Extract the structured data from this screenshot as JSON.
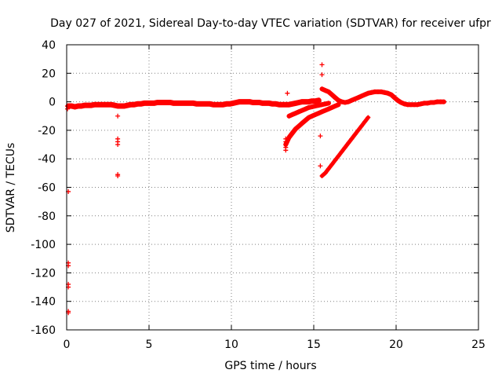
{
  "chart_data": {
    "type": "scatter",
    "title": "Day 027 of 2021, Sidereal Day-to-day VTEC variation (SDTVAR) for receiver ufpr",
    "xlabel": "GPS time / hours",
    "ylabel": "SDTVAR / TECUs",
    "xlim": [
      0,
      25
    ],
    "ylim": [
      -160,
      40
    ],
    "xticks": [
      0,
      5,
      10,
      15,
      20,
      25
    ],
    "yticks": [
      -160,
      -140,
      -120,
      -100,
      -80,
      -60,
      -40,
      -20,
      0,
      20,
      40
    ],
    "grid": true,
    "marker": "+",
    "color": "#ff0000",
    "series": [
      {
        "name": "main",
        "points": [
          [
            0.1,
            -3
          ],
          [
            0.3,
            -3
          ],
          [
            0.5,
            -3.5
          ],
          [
            0.7,
            -3
          ],
          [
            0.9,
            -3
          ],
          [
            1.1,
            -2.5
          ],
          [
            1.3,
            -2.5
          ],
          [
            1.5,
            -2.5
          ],
          [
            1.7,
            -2
          ],
          [
            1.9,
            -2
          ],
          [
            2.1,
            -2
          ],
          [
            2.3,
            -2
          ],
          [
            2.5,
            -2
          ],
          [
            2.7,
            -2
          ],
          [
            2.9,
            -2.5
          ],
          [
            3.1,
            -3
          ],
          [
            3.3,
            -3
          ],
          [
            3.5,
            -3
          ],
          [
            3.7,
            -2.5
          ],
          [
            3.9,
            -2
          ],
          [
            4.1,
            -2
          ],
          [
            4.3,
            -1.5
          ],
          [
            4.5,
            -1.5
          ],
          [
            4.7,
            -1
          ],
          [
            4.9,
            -1
          ],
          [
            5.1,
            -1
          ],
          [
            5.3,
            -1
          ],
          [
            5.5,
            -0.5
          ],
          [
            5.7,
            -0.5
          ],
          [
            5.9,
            -0.5
          ],
          [
            6.1,
            -0.5
          ],
          [
            6.3,
            -0.5
          ],
          [
            6.5,
            -1
          ],
          [
            6.7,
            -1
          ],
          [
            6.9,
            -1
          ],
          [
            7.1,
            -1
          ],
          [
            7.3,
            -1
          ],
          [
            7.5,
            -1
          ],
          [
            7.7,
            -1
          ],
          [
            7.9,
            -1.5
          ],
          [
            8.1,
            -1.5
          ],
          [
            8.3,
            -1.5
          ],
          [
            8.5,
            -1.5
          ],
          [
            8.7,
            -1.5
          ],
          [
            8.9,
            -2
          ],
          [
            9.1,
            -2
          ],
          [
            9.3,
            -2
          ],
          [
            9.5,
            -2
          ],
          [
            9.7,
            -1.5
          ],
          [
            9.9,
            -1.5
          ],
          [
            10.1,
            -1
          ],
          [
            10.3,
            -0.5
          ],
          [
            10.5,
            0
          ],
          [
            10.7,
            0
          ],
          [
            10.9,
            0
          ],
          [
            11.1,
            0
          ],
          [
            11.3,
            -0.5
          ],
          [
            11.5,
            -0.5
          ],
          [
            11.7,
            -0.5
          ],
          [
            11.9,
            -1
          ],
          [
            12.1,
            -1
          ],
          [
            12.3,
            -1
          ],
          [
            12.5,
            -1.5
          ],
          [
            12.7,
            -1.5
          ],
          [
            12.9,
            -2
          ],
          [
            13.1,
            -2
          ],
          [
            13.3,
            -2
          ],
          [
            13.5,
            -2
          ],
          [
            13.7,
            -1.5
          ],
          [
            13.9,
            -1
          ],
          [
            14.1,
            -0.5
          ],
          [
            14.3,
            0
          ],
          [
            14.5,
            0
          ],
          [
            14.7,
            0
          ],
          [
            14.9,
            0.5
          ],
          [
            15.1,
            0.5
          ],
          [
            15.3,
            1
          ]
        ]
      },
      {
        "name": "upper-branch",
        "points": [
          [
            15.5,
            9
          ],
          [
            15.7,
            8
          ],
          [
            15.9,
            7
          ],
          [
            16.1,
            5
          ],
          [
            16.3,
            3
          ],
          [
            16.5,
            1
          ],
          [
            16.7,
            0
          ],
          [
            16.9,
            -0.5
          ],
          [
            17.1,
            0
          ],
          [
            17.3,
            1
          ],
          [
            17.5,
            2
          ],
          [
            17.7,
            3
          ],
          [
            17.9,
            4
          ],
          [
            18.1,
            5
          ],
          [
            18.3,
            6
          ],
          [
            18.5,
            6.5
          ],
          [
            18.7,
            7
          ],
          [
            18.9,
            7
          ],
          [
            19.1,
            7
          ],
          [
            19.3,
            6.5
          ],
          [
            19.5,
            6
          ],
          [
            19.7,
            5
          ],
          [
            19.9,
            3
          ],
          [
            20.1,
            1
          ],
          [
            20.3,
            -0.5
          ],
          [
            20.5,
            -1.5
          ],
          [
            20.7,
            -2
          ],
          [
            20.9,
            -2
          ],
          [
            21.1,
            -2
          ],
          [
            21.3,
            -2
          ],
          [
            21.5,
            -1.5
          ],
          [
            21.7,
            -1
          ],
          [
            21.9,
            -1
          ],
          [
            22.1,
            -0.5
          ],
          [
            22.3,
            -0.5
          ],
          [
            22.5,
            0
          ],
          [
            22.7,
            0
          ],
          [
            22.9,
            0
          ]
        ]
      },
      {
        "name": "descending-branch",
        "points": [
          [
            13.3,
            -30
          ],
          [
            13.5,
            -25
          ],
          [
            13.7,
            -22
          ],
          [
            13.9,
            -19
          ],
          [
            14.1,
            -17
          ],
          [
            14.3,
            -15
          ],
          [
            14.5,
            -13
          ],
          [
            14.7,
            -11
          ],
          [
            14.9,
            -10
          ],
          [
            15.1,
            -9
          ],
          [
            15.3,
            -8
          ],
          [
            15.5,
            -7
          ],
          [
            15.7,
            -6
          ],
          [
            15.9,
            -5
          ],
          [
            16.1,
            -4
          ],
          [
            16.3,
            -3
          ],
          [
            16.5,
            -2
          ]
        ]
      },
      {
        "name": "middle-branch",
        "points": [
          [
            13.5,
            -10
          ],
          [
            13.7,
            -9
          ],
          [
            13.9,
            -8
          ],
          [
            14.1,
            -7
          ],
          [
            14.3,
            -6
          ],
          [
            14.5,
            -5
          ],
          [
            14.7,
            -4
          ],
          [
            14.9,
            -3.5
          ],
          [
            15.1,
            -3
          ],
          [
            15.3,
            -2.5
          ],
          [
            15.5,
            -2
          ],
          [
            15.7,
            -1.5
          ],
          [
            15.9,
            -1
          ]
        ]
      },
      {
        "name": "steep-branch",
        "points": [
          [
            15.5,
            -52
          ],
          [
            15.7,
            -50
          ],
          [
            15.9,
            -47
          ],
          [
            16.1,
            -44
          ],
          [
            16.3,
            -41
          ],
          [
            16.5,
            -38
          ],
          [
            16.7,
            -35
          ],
          [
            16.9,
            -32
          ],
          [
            17.1,
            -29
          ],
          [
            17.3,
            -26
          ],
          [
            17.5,
            -23
          ],
          [
            17.7,
            -20
          ],
          [
            17.9,
            -17
          ],
          [
            18.1,
            -14
          ],
          [
            18.3,
            -11
          ]
        ]
      },
      {
        "name": "outliers",
        "points": [
          [
            0.05,
            -3
          ],
          [
            0.05,
            -5
          ],
          [
            0.1,
            -63
          ],
          [
            0.1,
            -113
          ],
          [
            0.1,
            -115
          ],
          [
            0.1,
            -128
          ],
          [
            0.1,
            -130
          ],
          [
            0.1,
            -147
          ],
          [
            0.1,
            -148
          ],
          [
            3.1,
            -10
          ],
          [
            3.1,
            -26
          ],
          [
            3.1,
            -28
          ],
          [
            3.1,
            -30
          ],
          [
            3.1,
            -51
          ],
          [
            3.1,
            -52
          ],
          [
            13.3,
            -26
          ],
          [
            13.3,
            -28
          ],
          [
            13.3,
            -32
          ],
          [
            13.3,
            -34
          ],
          [
            13.4,
            6
          ],
          [
            15.4,
            -24
          ],
          [
            15.4,
            -45
          ],
          [
            15.5,
            19
          ],
          [
            15.5,
            26
          ]
        ]
      }
    ]
  }
}
